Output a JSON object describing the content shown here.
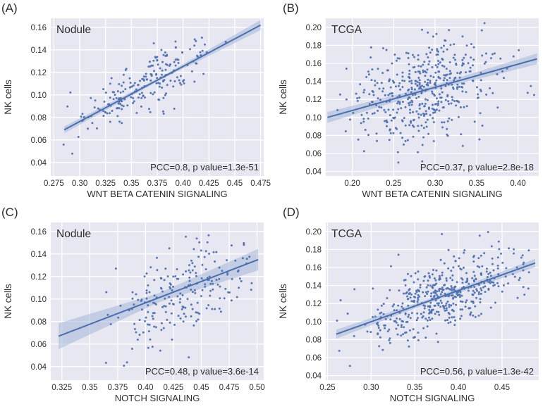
{
  "figure": {
    "background": "#ffffff",
    "plot_bg": "#e6e7f0",
    "grid_color": "#ffffff",
    "point_color": "#4d6fb0",
    "line_color": "#4a6fae",
    "band_color": "#9db1d6",
    "text_color": "#2e2e2e"
  },
  "chart_data": [
    {
      "type": "scatter",
      "panel_label": "(A)",
      "title": "Nodule",
      "xlabel": "WNT BETA CATENIN SIGNALING",
      "ylabel": "NK cells",
      "annotation": "PCC=0.8, p value=1.3e-51",
      "pcc": 0.8,
      "p_value": "1.3e-51",
      "xlim": [
        0.272,
        0.478
      ],
      "ylim": [
        0.028,
        0.168
      ],
      "x_ticks": [
        "0.275",
        "0.30",
        "0.325",
        "0.35",
        "0.375",
        "0.40",
        "0.425",
        "0.45",
        "0.475"
      ],
      "y_ticks": [
        "0.04",
        "0.06",
        "0.08",
        "0.10",
        "0.12",
        "0.14",
        "0.16"
      ],
      "grid": true,
      "regression": {
        "x1": 0.285,
        "y1": 0.069,
        "x2": 0.475,
        "y2": 0.162
      },
      "ci_halfwidth": [
        0.003,
        0.0013,
        0.0045
      ],
      "scatter_gen": {
        "n": 215,
        "seed": 7,
        "x_mean": 0.362,
        "x_sd": 0.033,
        "x_min": 0.284,
        "x_max": 0.471,
        "noise_sd": 0.0122,
        "y_min": 0.033,
        "y_max": 0.157
      }
    },
    {
      "type": "scatter",
      "panel_label": "(B)",
      "title": "TCGA",
      "xlabel": "WNT BETA CATENIN SIGNALING",
      "ylabel": "NK cells",
      "annotation": "PCC=0.37, p value=2.8e-18",
      "pcc": 0.37,
      "p_value": "2.8e-18",
      "xlim": [
        0.168,
        0.425
      ],
      "ylim": [
        0.035,
        0.21
      ],
      "x_ticks": [
        "0.20",
        "0.25",
        "0.30",
        "0.35",
        "0.40"
      ],
      "y_ticks": [
        "0.04",
        "0.06",
        "0.08",
        "0.10",
        "0.12",
        "0.14",
        "0.16",
        "0.18",
        "0.20"
      ],
      "grid": true,
      "regression": {
        "x1": 0.17,
        "y1": 0.1,
        "x2": 0.423,
        "y2": 0.165
      },
      "ci_halfwidth": [
        0.006,
        0.0025,
        0.006
      ],
      "scatter_gen": {
        "n": 470,
        "seed": 19,
        "x_mean": 0.286,
        "x_sd": 0.044,
        "x_min": 0.171,
        "x_max": 0.421,
        "noise_sd": 0.027,
        "y_min": 0.045,
        "y_max": 0.206
      }
    },
    {
      "type": "scatter",
      "panel_label": "(C)",
      "title": "Nodule",
      "xlabel": "NOTCH SIGNALING",
      "ylabel": "NK cells",
      "annotation": "PCC=0.48, p value=3.6e-14",
      "pcc": 0.48,
      "p_value": "3.6e-14",
      "xlim": [
        0.315,
        0.506
      ],
      "ylim": [
        0.028,
        0.168
      ],
      "x_ticks": [
        "0.325",
        "0.35",
        "0.375",
        "0.40",
        "0.425",
        "0.45",
        "0.475",
        "0.50"
      ],
      "y_ticks": [
        "0.04",
        "0.06",
        "0.08",
        "0.10",
        "0.12",
        "0.14",
        "0.16"
      ],
      "grid": true,
      "regression": {
        "x1": 0.322,
        "y1": 0.067,
        "x2": 0.501,
        "y2": 0.135
      },
      "ci_halfwidth": [
        0.0115,
        0.004,
        0.0095
      ],
      "scatter_gen": {
        "n": 220,
        "seed": 29,
        "x_mean": 0.429,
        "x_sd": 0.031,
        "x_min": 0.322,
        "x_max": 0.503,
        "noise_sd": 0.019,
        "y_min": 0.033,
        "y_max": 0.157
      }
    },
    {
      "type": "scatter",
      "panel_label": "(D)",
      "title": "TCGA",
      "xlabel": "NOTCH SIGNALING",
      "ylabel": "NK cells",
      "annotation": "PCC=0.56, p value=1.3e-42",
      "pcc": 0.56,
      "p_value": "1.3e-42",
      "xlim": [
        0.248,
        0.492
      ],
      "ylim": [
        0.035,
        0.21
      ],
      "x_ticks": [
        "0.25",
        "0.30",
        "0.35",
        "0.40",
        "0.45"
      ],
      "y_ticks": [
        "0.04",
        "0.06",
        "0.08",
        "0.10",
        "0.12",
        "0.14",
        "0.16",
        "0.18",
        "0.20"
      ],
      "grid": true,
      "regression": {
        "x1": 0.26,
        "y1": 0.086,
        "x2": 0.488,
        "y2": 0.165
      },
      "ci_halfwidth": [
        0.005,
        0.002,
        0.0045
      ],
      "scatter_gen": {
        "n": 480,
        "seed": 41,
        "x_mean": 0.383,
        "x_sd": 0.042,
        "x_min": 0.257,
        "x_max": 0.489,
        "noise_sd": 0.0205,
        "y_min": 0.045,
        "y_max": 0.207
      }
    }
  ]
}
